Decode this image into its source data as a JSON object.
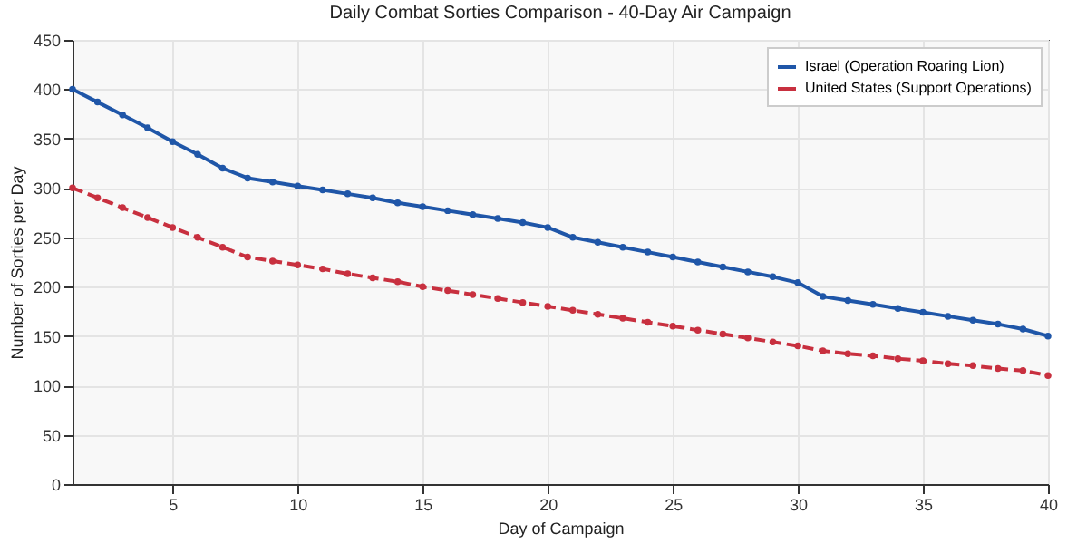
{
  "chart_data": {
    "type": "line",
    "title": "Daily Combat Sorties Comparison - 40-Day Air Campaign",
    "xlabel": "Day of Campaign",
    "ylabel": "Number of Sorties per Day",
    "x": [
      1,
      2,
      3,
      4,
      5,
      6,
      7,
      8,
      9,
      10,
      11,
      12,
      13,
      14,
      15,
      16,
      17,
      18,
      19,
      20,
      21,
      22,
      23,
      24,
      25,
      26,
      27,
      28,
      29,
      30,
      31,
      32,
      33,
      34,
      35,
      36,
      37,
      38,
      39,
      40
    ],
    "series": [
      {
        "name": "Israel (Operation Roaring Lion)",
        "color": "#1f56a8",
        "line_style": "solid",
        "values": [
          400,
          387,
          374,
          361,
          347,
          334,
          320,
          310,
          306,
          302,
          298,
          294,
          290,
          285,
          281,
          277,
          273,
          269,
          265,
          260,
          250,
          245,
          240,
          235,
          230,
          225,
          220,
          215,
          210,
          204,
          190,
          186,
          182,
          178,
          174,
          170,
          166,
          162,
          157,
          150
        ]
      },
      {
        "name": "United States (Support Operations)",
        "color": "#c8303f",
        "line_style": "dashed",
        "values": [
          300,
          290,
          280,
          270,
          260,
          250,
          240,
          230,
          226,
          222,
          218,
          213,
          209,
          205,
          200,
          196,
          192,
          188,
          184,
          180,
          176,
          172,
          168,
          164,
          160,
          156,
          152,
          148,
          144,
          140,
          135,
          132,
          130,
          127,
          125,
          122,
          120,
          117,
          115,
          110
        ]
      }
    ],
    "xlim": [
      1,
      40
    ],
    "xticks": [
      5,
      10,
      15,
      20,
      25,
      30,
      35,
      40
    ],
    "ylim": [
      0,
      450
    ],
    "yticks": [
      0,
      50,
      100,
      150,
      200,
      250,
      300,
      350,
      400,
      450
    ],
    "grid": true,
    "legend": "top right",
    "marker": "circle"
  }
}
